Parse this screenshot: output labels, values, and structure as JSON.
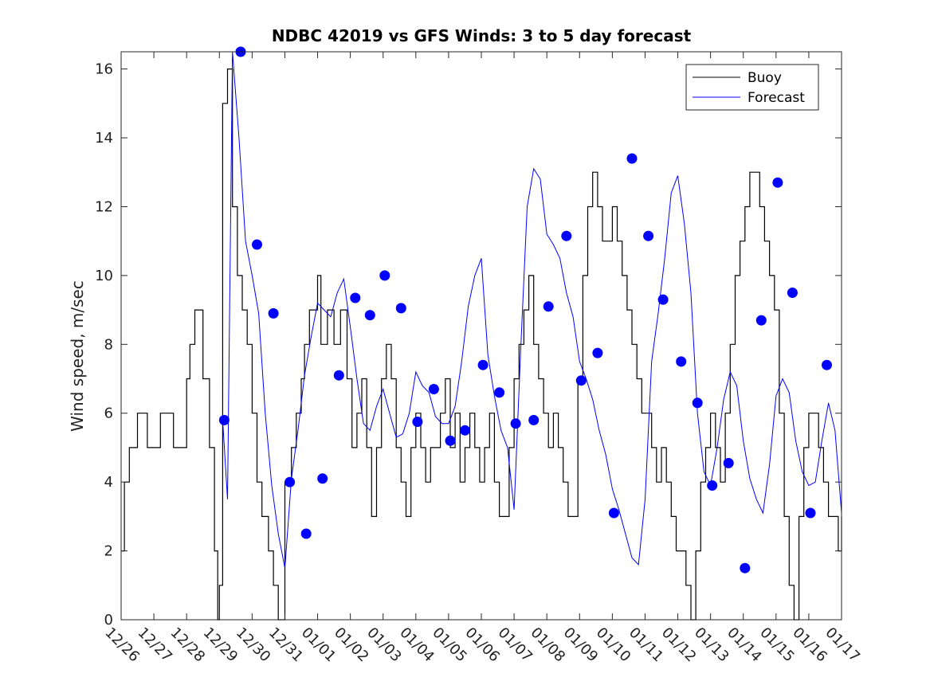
{
  "chart_data": {
    "type": "line",
    "title": "NDBC 42019 vs GFS Winds: 3 to 5 day forecast",
    "xlabel": "",
    "ylabel": "Wind speed, m/sec",
    "xlim": [
      0,
      22
    ],
    "ylim": [
      0,
      16.5
    ],
    "x_tick_labels": [
      "12/26",
      "12/27",
      "12/28",
      "12/29",
      "12/30",
      "12/31",
      "01/01",
      "01/02",
      "01/03",
      "01/04",
      "01/05",
      "01/06",
      "01/07",
      "01/08",
      "01/09",
      "01/10",
      "01/11",
      "01/12",
      "01/13",
      "01/14",
      "01/15",
      "01/16",
      "01/17"
    ],
    "y_ticks": [
      0,
      2,
      4,
      6,
      8,
      10,
      12,
      14,
      16
    ],
    "legend": {
      "position": "top-right",
      "entries": [
        {
          "label": "Buoy",
          "color": "#000000"
        },
        {
          "label": "Forecast",
          "color": "#0000ff"
        }
      ]
    },
    "colors": {
      "buoy": "#000000",
      "forecast": "#0000ff"
    },
    "series": [
      {
        "name": "Buoy",
        "style": "step",
        "x": [
          0,
          0.1,
          0.25,
          0.5,
          0.8,
          1.2,
          1.6,
          2.0,
          2.1,
          2.25,
          2.5,
          2.7,
          2.85,
          2.95,
          3.0,
          3.1,
          3.25,
          3.4,
          3.55,
          3.7,
          3.85,
          4.0,
          4.15,
          4.3,
          4.5,
          4.65,
          4.8,
          5.0,
          5.2,
          5.35,
          5.5,
          5.6,
          5.75,
          5.9,
          6.0,
          6.1,
          6.3,
          6.5,
          6.7,
          6.9,
          7.05,
          7.2,
          7.35,
          7.5,
          7.65,
          7.8,
          7.95,
          8.1,
          8.25,
          8.4,
          8.55,
          8.7,
          8.85,
          9.0,
          9.15,
          9.3,
          9.45,
          9.6,
          9.75,
          9.9,
          10.05,
          10.2,
          10.35,
          10.5,
          10.65,
          10.8,
          10.95,
          11.1,
          11.25,
          11.4,
          11.55,
          11.7,
          11.85,
          12.0,
          12.15,
          12.3,
          12.45,
          12.6,
          12.75,
          12.9,
          13.05,
          13.2,
          13.35,
          13.5,
          13.65,
          13.8,
          13.95,
          14.1,
          14.25,
          14.4,
          14.55,
          14.7,
          14.85,
          15.0,
          15.15,
          15.3,
          15.45,
          15.6,
          15.75,
          15.9,
          16.05,
          16.2,
          16.35,
          16.5,
          16.65,
          16.8,
          16.95,
          17.1,
          17.25,
          17.4,
          17.55,
          17.7,
          17.85,
          18.0,
          18.15,
          18.3,
          18.45,
          18.6,
          18.75,
          18.9,
          19.05,
          19.2,
          19.35,
          19.5,
          19.65,
          19.8,
          19.95,
          20.1,
          20.25,
          20.4,
          20.55,
          20.7,
          20.85,
          21.0,
          21.15,
          21.3,
          21.45,
          21.6,
          21.75,
          21.9,
          22.0
        ],
        "values": [
          2,
          4,
          5,
          6,
          5,
          6,
          5,
          7,
          8,
          9,
          7,
          5,
          2,
          0,
          1,
          15,
          16,
          12,
          10,
          9,
          8,
          6,
          4,
          3,
          2,
          1,
          0,
          4,
          5,
          6,
          7,
          8,
          9,
          9,
          10,
          8,
          9,
          8,
          9,
          7,
          5,
          6,
          7,
          5,
          3,
          5,
          7,
          8,
          7,
          5,
          4,
          3,
          5,
          6,
          5,
          4,
          5,
          5,
          6,
          7,
          5,
          6,
          4,
          5,
          6,
          5,
          4,
          5,
          6,
          4,
          3,
          3,
          5,
          7,
          8,
          9,
          10,
          8,
          7,
          6,
          5,
          6,
          5,
          4,
          3,
          3,
          7,
          10,
          12,
          13,
          12,
          11,
          11,
          12,
          11,
          10,
          9,
          8,
          7,
          6,
          6,
          5,
          4,
          5,
          4,
          3,
          2,
          2,
          1,
          0,
          2,
          4,
          5,
          6,
          5,
          4,
          6,
          8,
          10,
          11,
          12,
          13,
          13,
          12,
          11,
          10,
          9,
          6,
          3,
          1,
          0,
          3,
          5,
          6,
          6,
          5,
          4,
          3,
          3,
          2,
          3
        ]
      },
      {
        "name": "Forecast",
        "style": "line",
        "x": [
          3.1,
          3.25,
          3.4,
          3.6,
          3.8,
          4.0,
          4.2,
          4.4,
          4.6,
          4.8,
          5.0,
          5.2,
          5.4,
          5.6,
          5.8,
          6.0,
          6.2,
          6.4,
          6.6,
          6.8,
          7.0,
          7.2,
          7.4,
          7.6,
          7.8,
          8.0,
          8.2,
          8.4,
          8.6,
          8.8,
          9.0,
          9.2,
          9.4,
          9.6,
          9.8,
          10.0,
          10.2,
          10.4,
          10.6,
          10.8,
          11.0,
          11.2,
          11.4,
          11.6,
          11.8,
          12.0,
          12.2,
          12.4,
          12.6,
          12.8,
          13.0,
          13.2,
          13.4,
          13.6,
          13.8,
          14.0,
          14.2,
          14.4,
          14.6,
          14.8,
          15.0,
          15.2,
          15.4,
          15.6,
          15.8,
          16.0,
          16.2,
          16.4,
          16.6,
          16.8,
          17.0,
          17.2,
          17.4,
          17.6,
          17.8,
          18.0,
          18.2,
          18.4,
          18.6,
          18.8,
          19.0,
          19.2,
          19.4,
          19.6,
          19.8,
          20.0,
          20.2,
          20.4,
          20.6,
          20.8,
          21.0,
          21.2,
          21.4,
          21.6,
          21.8,
          22.0
        ],
        "values": [
          5.8,
          3.5,
          16.5,
          14,
          11,
          10,
          8.9,
          6,
          3.9,
          2.5,
          1.5,
          4.1,
          5.5,
          7.1,
          8.2,
          9.2,
          9,
          8.8,
          9.5,
          9.9,
          8.5,
          7,
          5.7,
          5.5,
          6.2,
          6.7,
          6,
          5.3,
          5.4,
          6,
          7.2,
          6.8,
          6.6,
          5.9,
          5.7,
          5.7,
          6.2,
          7.5,
          9.1,
          10,
          10.5,
          7.7,
          6.5,
          5.5,
          5,
          3.2,
          7.8,
          12,
          13.1,
          12.8,
          11.2,
          10.9,
          10.5,
          9.5,
          8.8,
          7.5,
          7,
          6.4,
          5.5,
          4.8,
          3.8,
          3.2,
          2.5,
          1.8,
          1.6,
          3.5,
          7.5,
          8.9,
          10.5,
          12.4,
          12.9,
          11.5,
          9.5,
          6,
          4.3,
          3.9,
          5,
          6.4,
          7.2,
          6.8,
          5.2,
          4.1,
          3.5,
          3.1,
          4.5,
          6.5,
          7,
          6.6,
          5.2,
          4.3,
          3.9,
          4,
          5.2,
          6.3,
          5.5,
          3.1
        ]
      }
    ],
    "forecast_markers": {
      "x": [
        3.15,
        3.65,
        4.15,
        4.65,
        5.15,
        5.65,
        6.15,
        6.65,
        7.15,
        7.6,
        8.05,
        8.55,
        9.05,
        9.55,
        10.05,
        10.5,
        11.05,
        11.55,
        12.05,
        12.6,
        13.05,
        13.6,
        14.05,
        14.55,
        15.05,
        15.6,
        16.1,
        16.55,
        17.1,
        17.6,
        18.05,
        18.55,
        19.05,
        19.55,
        20.05,
        20.5,
        21.05,
        21.55
      ],
      "values": [
        5.8,
        16.5,
        10.9,
        8.9,
        4,
        2.5,
        4.1,
        7.1,
        9.35,
        8.85,
        10,
        9.05,
        5.75,
        6.7,
        5.2,
        5.5,
        7.4,
        6.6,
        5.7,
        5.8,
        9.1,
        11.15,
        6.95,
        7.75,
        3.1,
        13.4,
        11.15,
        9.3,
        7.5,
        6.3,
        3.9,
        4.55,
        1.5,
        8.7,
        12.7,
        9.5,
        3.1,
        7.4
      ]
    }
  }
}
